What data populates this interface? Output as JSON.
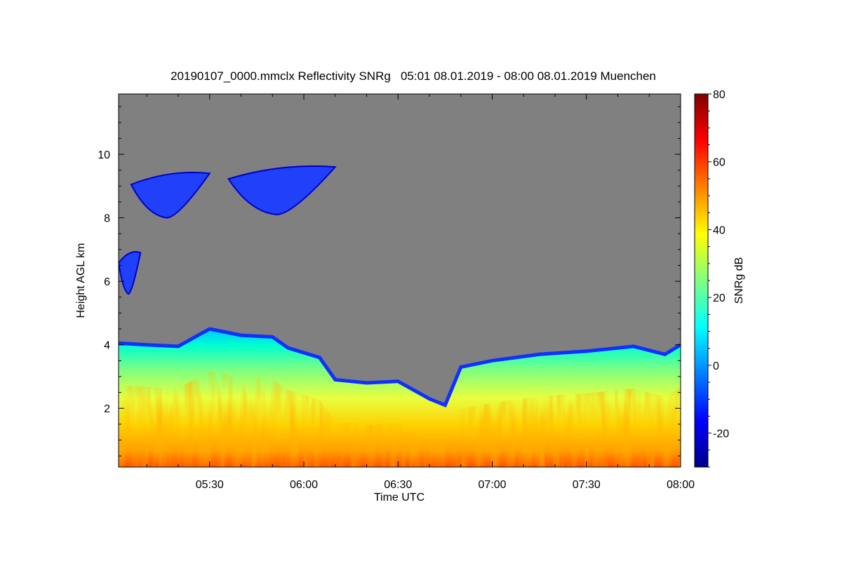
{
  "chart_data": {
    "type": "heatmap",
    "title": "20190107_0000.mmclx Reflectivity SNRg   05:01 08.01.2019 - 08:00 08.01.2019 Muenchen",
    "xlabel": "Time UTC",
    "ylabel": "Height AGL km",
    "colorbar_label": "SNRg dB",
    "xlim": [
      "05:01",
      "08:00"
    ],
    "ylim": [
      0.15,
      11.9
    ],
    "x_ticks": [
      "05:30",
      "06:00",
      "06:30",
      "07:00",
      "07:30",
      "08:00"
    ],
    "x_tick_minutes": [
      30,
      60,
      90,
      120,
      150,
      180
    ],
    "y_ticks": [
      2,
      4,
      6,
      8,
      10
    ],
    "colorbar_range": [
      -30,
      80
    ],
    "colorbar_ticks": [
      -20,
      0,
      20,
      40,
      60,
      80
    ],
    "background_color": "#808080",
    "colormap": [
      "#00008c",
      "#0000ff",
      "#0080ff",
      "#00ffff",
      "#80ff80",
      "#ffff00",
      "#ff8000",
      "#ff0000",
      "#800000"
    ],
    "low_cloud_top_km": [
      {
        "time": "05:01",
        "top": 4.05
      },
      {
        "time": "05:10",
        "top": 4.0
      },
      {
        "time": "05:20",
        "top": 3.95
      },
      {
        "time": "05:30",
        "top": 4.5
      },
      {
        "time": "05:40",
        "top": 4.3
      },
      {
        "time": "05:50",
        "top": 4.25
      },
      {
        "time": "05:55",
        "top": 3.9
      },
      {
        "time": "06:05",
        "top": 3.6
      },
      {
        "time": "06:10",
        "top": 2.9
      },
      {
        "time": "06:20",
        "top": 2.8
      },
      {
        "time": "06:30",
        "top": 2.85
      },
      {
        "time": "06:40",
        "top": 2.3
      },
      {
        "time": "06:45",
        "top": 2.1
      },
      {
        "time": "06:50",
        "top": 3.3
      },
      {
        "time": "07:00",
        "top": 3.5
      },
      {
        "time": "07:15",
        "top": 3.7
      },
      {
        "time": "07:30",
        "top": 3.8
      },
      {
        "time": "07:45",
        "top": 3.95
      },
      {
        "time": "07:55",
        "top": 3.7
      },
      {
        "time": "08:00",
        "top": 4.0
      }
    ],
    "cirrus_patches": [
      {
        "start": "05:05",
        "end": "05:30",
        "bottom_km": 8.0,
        "top_km": 9.4,
        "snr_db": -18
      },
      {
        "start": "05:36",
        "end": "06:10",
        "bottom_km": 8.1,
        "top_km": 9.6,
        "snr_db": -18
      },
      {
        "start": "05:01",
        "end": "05:08",
        "bottom_km": 5.6,
        "top_km": 6.9,
        "snr_db": -10
      }
    ]
  }
}
